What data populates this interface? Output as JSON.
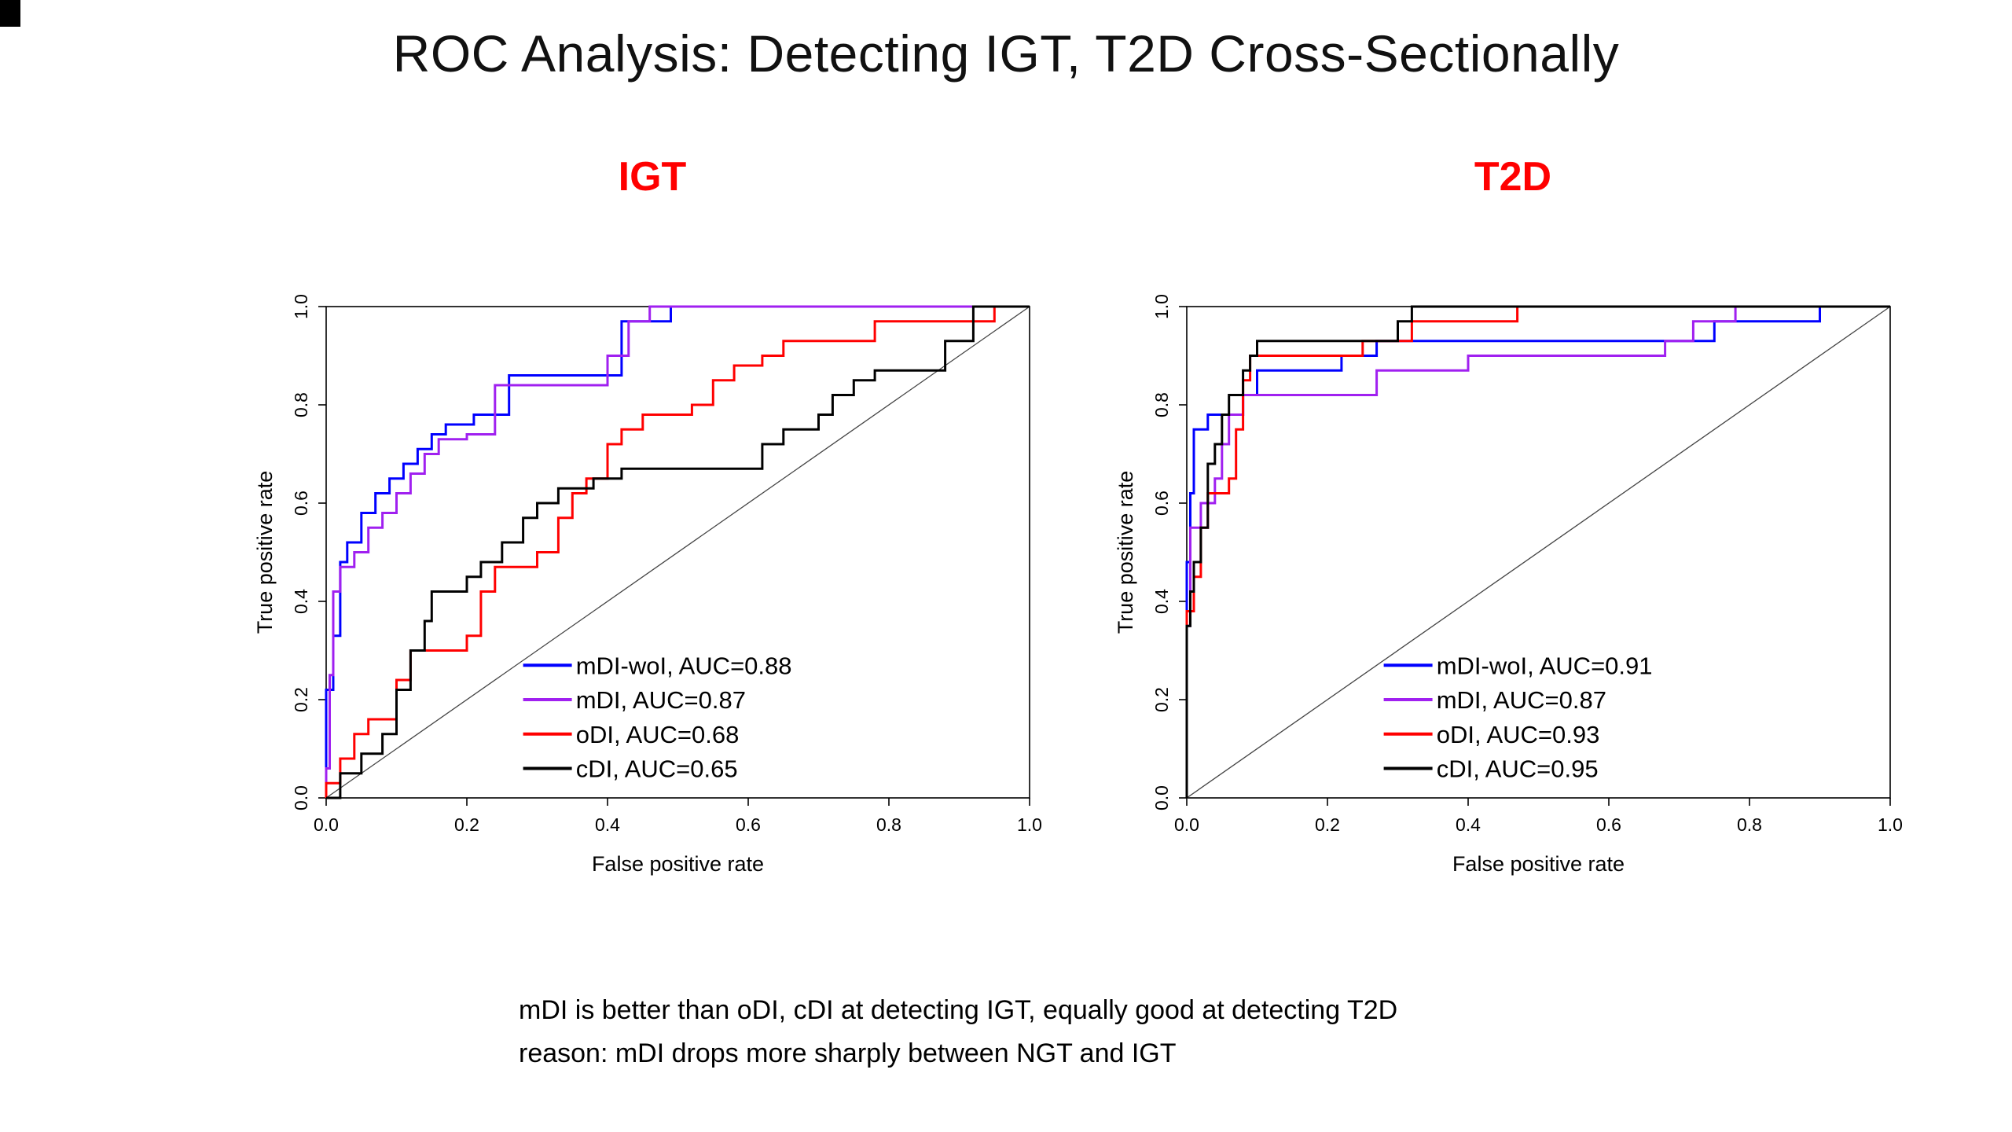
{
  "slide": {
    "title": "ROC Analysis: Detecting IGT, T2D Cross-Sectionally",
    "notes": [
      "mDI is better than oDI, cDI at detecting IGT, equally good at detecting T2D",
      "reason: mDI drops more sharply between NGT and IGT"
    ]
  },
  "palette": {
    "blue": "#0000ff",
    "purple": "#a020f0",
    "red": "#ff0000",
    "black": "#000000",
    "header_red": "#ff0000",
    "diagonal_gray": "#444444"
  },
  "chart_data": [
    {
      "type": "line",
      "title": "IGT",
      "xlabel": "False positive rate",
      "ylabel": "True positive rate",
      "xlim": [
        0,
        1
      ],
      "ylim": [
        0,
        1
      ],
      "xticks": [
        0.0,
        0.2,
        0.4,
        0.6,
        0.8,
        1.0
      ],
      "yticks": [
        0.0,
        0.2,
        0.4,
        0.6,
        0.8,
        1.0
      ],
      "grid": false,
      "diagonal": true,
      "legend_position": "lower-right",
      "series": [
        {
          "name": "mDI-woI",
          "auc": 0.88,
          "color": "blue",
          "points": [
            [
              0,
              0
            ],
            [
              0,
              0.22
            ],
            [
              0.01,
              0.22
            ],
            [
              0.01,
              0.33
            ],
            [
              0.02,
              0.33
            ],
            [
              0.02,
              0.48
            ],
            [
              0.03,
              0.48
            ],
            [
              0.03,
              0.52
            ],
            [
              0.05,
              0.52
            ],
            [
              0.05,
              0.58
            ],
            [
              0.07,
              0.58
            ],
            [
              0.07,
              0.62
            ],
            [
              0.09,
              0.62
            ],
            [
              0.09,
              0.65
            ],
            [
              0.11,
              0.65
            ],
            [
              0.11,
              0.68
            ],
            [
              0.13,
              0.68
            ],
            [
              0.13,
              0.71
            ],
            [
              0.15,
              0.71
            ],
            [
              0.15,
              0.74
            ],
            [
              0.17,
              0.74
            ],
            [
              0.17,
              0.76
            ],
            [
              0.21,
              0.76
            ],
            [
              0.21,
              0.78
            ],
            [
              0.26,
              0.78
            ],
            [
              0.26,
              0.86
            ],
            [
              0.42,
              0.86
            ],
            [
              0.42,
              0.97
            ],
            [
              0.49,
              0.97
            ],
            [
              0.49,
              1
            ],
            [
              1,
              1
            ]
          ]
        },
        {
          "name": "mDI",
          "auc": 0.87,
          "color": "purple",
          "points": [
            [
              0,
              0
            ],
            [
              0,
              0.06
            ],
            [
              0.005,
              0.06
            ],
            [
              0.005,
              0.25
            ],
            [
              0.01,
              0.25
            ],
            [
              0.01,
              0.42
            ],
            [
              0.02,
              0.42
            ],
            [
              0.02,
              0.47
            ],
            [
              0.04,
              0.47
            ],
            [
              0.04,
              0.5
            ],
            [
              0.06,
              0.5
            ],
            [
              0.06,
              0.55
            ],
            [
              0.08,
              0.55
            ],
            [
              0.08,
              0.58
            ],
            [
              0.1,
              0.58
            ],
            [
              0.1,
              0.62
            ],
            [
              0.12,
              0.62
            ],
            [
              0.12,
              0.66
            ],
            [
              0.14,
              0.66
            ],
            [
              0.14,
              0.7
            ],
            [
              0.16,
              0.7
            ],
            [
              0.16,
              0.73
            ],
            [
              0.2,
              0.73
            ],
            [
              0.2,
              0.74
            ],
            [
              0.24,
              0.74
            ],
            [
              0.24,
              0.84
            ],
            [
              0.4,
              0.84
            ],
            [
              0.4,
              0.9
            ],
            [
              0.43,
              0.9
            ],
            [
              0.43,
              0.97
            ],
            [
              0.46,
              0.97
            ],
            [
              0.46,
              1
            ],
            [
              1,
              1
            ]
          ]
        },
        {
          "name": "oDI",
          "auc": 0.68,
          "color": "red",
          "points": [
            [
              0,
              0
            ],
            [
              0,
              0.03
            ],
            [
              0.02,
              0.03
            ],
            [
              0.02,
              0.08
            ],
            [
              0.04,
              0.08
            ],
            [
              0.04,
              0.13
            ],
            [
              0.06,
              0.13
            ],
            [
              0.06,
              0.16
            ],
            [
              0.1,
              0.16
            ],
            [
              0.1,
              0.24
            ],
            [
              0.12,
              0.24
            ],
            [
              0.12,
              0.3
            ],
            [
              0.2,
              0.3
            ],
            [
              0.2,
              0.33
            ],
            [
              0.22,
              0.33
            ],
            [
              0.22,
              0.42
            ],
            [
              0.24,
              0.42
            ],
            [
              0.24,
              0.47
            ],
            [
              0.3,
              0.47
            ],
            [
              0.3,
              0.5
            ],
            [
              0.33,
              0.5
            ],
            [
              0.33,
              0.57
            ],
            [
              0.35,
              0.57
            ],
            [
              0.35,
              0.62
            ],
            [
              0.37,
              0.62
            ],
            [
              0.37,
              0.65
            ],
            [
              0.4,
              0.65
            ],
            [
              0.4,
              0.72
            ],
            [
              0.42,
              0.72
            ],
            [
              0.42,
              0.75
            ],
            [
              0.45,
              0.75
            ],
            [
              0.45,
              0.78
            ],
            [
              0.52,
              0.78
            ],
            [
              0.52,
              0.8
            ],
            [
              0.55,
              0.8
            ],
            [
              0.55,
              0.85
            ],
            [
              0.58,
              0.85
            ],
            [
              0.58,
              0.88
            ],
            [
              0.62,
              0.88
            ],
            [
              0.62,
              0.9
            ],
            [
              0.65,
              0.9
            ],
            [
              0.65,
              0.93
            ],
            [
              0.78,
              0.93
            ],
            [
              0.78,
              0.97
            ],
            [
              0.95,
              0.97
            ],
            [
              0.95,
              1
            ],
            [
              1,
              1
            ]
          ]
        },
        {
          "name": "cDI",
          "auc": 0.65,
          "color": "black",
          "points": [
            [
              0,
              0
            ],
            [
              0.02,
              0
            ],
            [
              0.02,
              0.05
            ],
            [
              0.05,
              0.05
            ],
            [
              0.05,
              0.09
            ],
            [
              0.08,
              0.09
            ],
            [
              0.08,
              0.13
            ],
            [
              0.1,
              0.13
            ],
            [
              0.1,
              0.22
            ],
            [
              0.12,
              0.22
            ],
            [
              0.12,
              0.3
            ],
            [
              0.14,
              0.3
            ],
            [
              0.14,
              0.36
            ],
            [
              0.15,
              0.36
            ],
            [
              0.15,
              0.42
            ],
            [
              0.2,
              0.42
            ],
            [
              0.2,
              0.45
            ],
            [
              0.22,
              0.45
            ],
            [
              0.22,
              0.48
            ],
            [
              0.25,
              0.48
            ],
            [
              0.25,
              0.52
            ],
            [
              0.28,
              0.52
            ],
            [
              0.28,
              0.57
            ],
            [
              0.3,
              0.57
            ],
            [
              0.3,
              0.6
            ],
            [
              0.33,
              0.6
            ],
            [
              0.33,
              0.63
            ],
            [
              0.38,
              0.63
            ],
            [
              0.38,
              0.65
            ],
            [
              0.42,
              0.65
            ],
            [
              0.42,
              0.67
            ],
            [
              0.62,
              0.67
            ],
            [
              0.62,
              0.72
            ],
            [
              0.65,
              0.72
            ],
            [
              0.65,
              0.75
            ],
            [
              0.7,
              0.75
            ],
            [
              0.7,
              0.78
            ],
            [
              0.72,
              0.78
            ],
            [
              0.72,
              0.82
            ],
            [
              0.75,
              0.82
            ],
            [
              0.75,
              0.85
            ],
            [
              0.78,
              0.85
            ],
            [
              0.78,
              0.87
            ],
            [
              0.88,
              0.87
            ],
            [
              0.88,
              0.93
            ],
            [
              0.92,
              0.93
            ],
            [
              0.92,
              1
            ],
            [
              1,
              1
            ]
          ]
        }
      ]
    },
    {
      "type": "line",
      "title": "T2D",
      "xlabel": "False positive rate",
      "ylabel": "True positive rate",
      "xlim": [
        0,
        1
      ],
      "ylim": [
        0,
        1
      ],
      "xticks": [
        0.0,
        0.2,
        0.4,
        0.6,
        0.8,
        1.0
      ],
      "yticks": [
        0.0,
        0.2,
        0.4,
        0.6,
        0.8,
        1.0
      ],
      "grid": false,
      "diagonal": true,
      "legend_position": "lower-right",
      "series": [
        {
          "name": "mDI-woI",
          "auc": 0.91,
          "color": "blue",
          "points": [
            [
              0,
              0
            ],
            [
              0,
              0.48
            ],
            [
              0.005,
              0.48
            ],
            [
              0.005,
              0.62
            ],
            [
              0.01,
              0.62
            ],
            [
              0.01,
              0.75
            ],
            [
              0.03,
              0.75
            ],
            [
              0.03,
              0.78
            ],
            [
              0.08,
              0.78
            ],
            [
              0.08,
              0.82
            ],
            [
              0.1,
              0.82
            ],
            [
              0.1,
              0.87
            ],
            [
              0.22,
              0.87
            ],
            [
              0.22,
              0.9
            ],
            [
              0.27,
              0.9
            ],
            [
              0.27,
              0.93
            ],
            [
              0.75,
              0.93
            ],
            [
              0.75,
              0.97
            ],
            [
              0.9,
              0.97
            ],
            [
              0.9,
              1
            ],
            [
              1,
              1
            ]
          ]
        },
        {
          "name": "mDI",
          "auc": 0.87,
          "color": "purple",
          "points": [
            [
              0,
              0
            ],
            [
              0,
              0.35
            ],
            [
              0.005,
              0.35
            ],
            [
              0.005,
              0.55
            ],
            [
              0.02,
              0.55
            ],
            [
              0.02,
              0.6
            ],
            [
              0.04,
              0.6
            ],
            [
              0.04,
              0.65
            ],
            [
              0.05,
              0.65
            ],
            [
              0.05,
              0.72
            ],
            [
              0.06,
              0.72
            ],
            [
              0.06,
              0.78
            ],
            [
              0.08,
              0.78
            ],
            [
              0.08,
              0.82
            ],
            [
              0.27,
              0.82
            ],
            [
              0.27,
              0.87
            ],
            [
              0.4,
              0.87
            ],
            [
              0.4,
              0.9
            ],
            [
              0.68,
              0.9
            ],
            [
              0.68,
              0.93
            ],
            [
              0.72,
              0.93
            ],
            [
              0.72,
              0.97
            ],
            [
              0.78,
              0.97
            ],
            [
              0.78,
              1
            ],
            [
              1,
              1
            ]
          ]
        },
        {
          "name": "oDI",
          "auc": 0.93,
          "color": "red",
          "points": [
            [
              0,
              0
            ],
            [
              0,
              0.38
            ],
            [
              0.01,
              0.38
            ],
            [
              0.01,
              0.45
            ],
            [
              0.02,
              0.45
            ],
            [
              0.02,
              0.55
            ],
            [
              0.03,
              0.55
            ],
            [
              0.03,
              0.62
            ],
            [
              0.06,
              0.62
            ],
            [
              0.06,
              0.65
            ],
            [
              0.07,
              0.65
            ],
            [
              0.07,
              0.75
            ],
            [
              0.08,
              0.75
            ],
            [
              0.08,
              0.85
            ],
            [
              0.09,
              0.85
            ],
            [
              0.09,
              0.9
            ],
            [
              0.25,
              0.9
            ],
            [
              0.25,
              0.93
            ],
            [
              0.32,
              0.93
            ],
            [
              0.32,
              0.97
            ],
            [
              0.47,
              0.97
            ],
            [
              0.47,
              1
            ],
            [
              1,
              1
            ]
          ]
        },
        {
          "name": "cDI",
          "auc": 0.95,
          "color": "black",
          "points": [
            [
              0,
              0
            ],
            [
              0,
              0.35
            ],
            [
              0.005,
              0.35
            ],
            [
              0.005,
              0.42
            ],
            [
              0.01,
              0.42
            ],
            [
              0.01,
              0.48
            ],
            [
              0.02,
              0.48
            ],
            [
              0.02,
              0.55
            ],
            [
              0.03,
              0.55
            ],
            [
              0.03,
              0.68
            ],
            [
              0.04,
              0.68
            ],
            [
              0.04,
              0.72
            ],
            [
              0.05,
              0.72
            ],
            [
              0.05,
              0.78
            ],
            [
              0.06,
              0.78
            ],
            [
              0.06,
              0.82
            ],
            [
              0.08,
              0.82
            ],
            [
              0.08,
              0.87
            ],
            [
              0.09,
              0.87
            ],
            [
              0.09,
              0.9
            ],
            [
              0.1,
              0.9
            ],
            [
              0.1,
              0.93
            ],
            [
              0.3,
              0.93
            ],
            [
              0.3,
              0.97
            ],
            [
              0.32,
              0.97
            ],
            [
              0.32,
              1
            ],
            [
              1,
              1
            ]
          ]
        }
      ]
    }
  ]
}
